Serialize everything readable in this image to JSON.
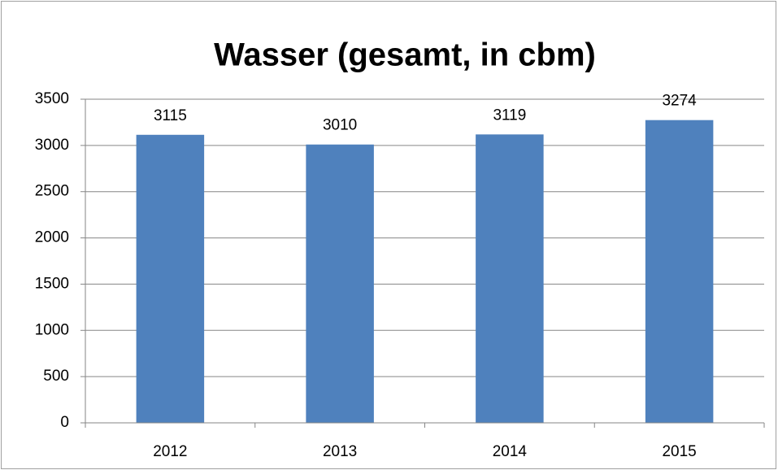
{
  "chart_data": {
    "type": "bar",
    "title": "Wasser (gesamt, in cbm)",
    "categories": [
      "2012",
      "2013",
      "2014",
      "2015"
    ],
    "values": [
      3115,
      3010,
      3119,
      3274
    ],
    "color": "#4f81bd",
    "ylim": [
      0,
      3500
    ],
    "yticks": [
      0,
      500,
      1000,
      1500,
      2000,
      2500,
      3000,
      3500
    ],
    "grid": true
  }
}
